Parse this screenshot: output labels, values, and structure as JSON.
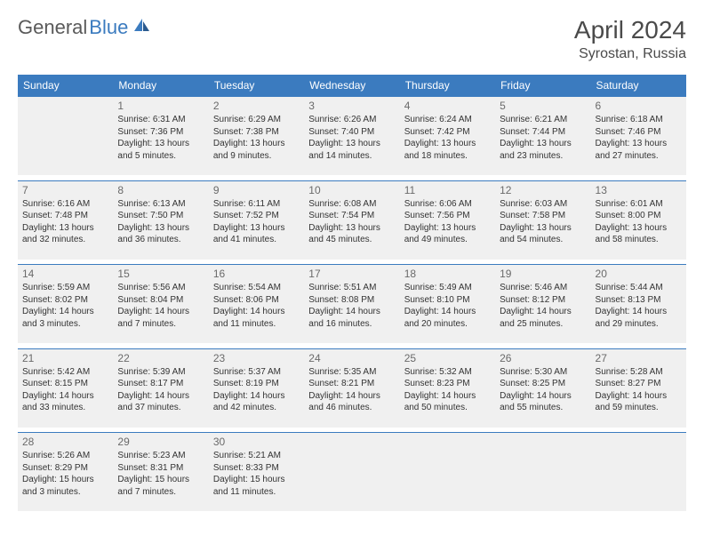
{
  "brand": {
    "part1": "General",
    "part2": "Blue"
  },
  "title": "April 2024",
  "location": "Syrostan, Russia",
  "day_headers": [
    "Sunday",
    "Monday",
    "Tuesday",
    "Wednesday",
    "Thursday",
    "Friday",
    "Saturday"
  ],
  "colors": {
    "header_bg": "#3b7bbf",
    "cell_bg": "#f0f0f0",
    "text": "#333333",
    "title_text": "#4a4a4a"
  },
  "weeks": [
    [
      {
        "n": "",
        "sr": "",
        "ss": "",
        "dl": ""
      },
      {
        "n": "1",
        "sr": "Sunrise: 6:31 AM",
        "ss": "Sunset: 7:36 PM",
        "dl": "Daylight: 13 hours and 5 minutes."
      },
      {
        "n": "2",
        "sr": "Sunrise: 6:29 AM",
        "ss": "Sunset: 7:38 PM",
        "dl": "Daylight: 13 hours and 9 minutes."
      },
      {
        "n": "3",
        "sr": "Sunrise: 6:26 AM",
        "ss": "Sunset: 7:40 PM",
        "dl": "Daylight: 13 hours and 14 minutes."
      },
      {
        "n": "4",
        "sr": "Sunrise: 6:24 AM",
        "ss": "Sunset: 7:42 PM",
        "dl": "Daylight: 13 hours and 18 minutes."
      },
      {
        "n": "5",
        "sr": "Sunrise: 6:21 AM",
        "ss": "Sunset: 7:44 PM",
        "dl": "Daylight: 13 hours and 23 minutes."
      },
      {
        "n": "6",
        "sr": "Sunrise: 6:18 AM",
        "ss": "Sunset: 7:46 PM",
        "dl": "Daylight: 13 hours and 27 minutes."
      }
    ],
    [
      {
        "n": "7",
        "sr": "Sunrise: 6:16 AM",
        "ss": "Sunset: 7:48 PM",
        "dl": "Daylight: 13 hours and 32 minutes."
      },
      {
        "n": "8",
        "sr": "Sunrise: 6:13 AM",
        "ss": "Sunset: 7:50 PM",
        "dl": "Daylight: 13 hours and 36 minutes."
      },
      {
        "n": "9",
        "sr": "Sunrise: 6:11 AM",
        "ss": "Sunset: 7:52 PM",
        "dl": "Daylight: 13 hours and 41 minutes."
      },
      {
        "n": "10",
        "sr": "Sunrise: 6:08 AM",
        "ss": "Sunset: 7:54 PM",
        "dl": "Daylight: 13 hours and 45 minutes."
      },
      {
        "n": "11",
        "sr": "Sunrise: 6:06 AM",
        "ss": "Sunset: 7:56 PM",
        "dl": "Daylight: 13 hours and 49 minutes."
      },
      {
        "n": "12",
        "sr": "Sunrise: 6:03 AM",
        "ss": "Sunset: 7:58 PM",
        "dl": "Daylight: 13 hours and 54 minutes."
      },
      {
        "n": "13",
        "sr": "Sunrise: 6:01 AM",
        "ss": "Sunset: 8:00 PM",
        "dl": "Daylight: 13 hours and 58 minutes."
      }
    ],
    [
      {
        "n": "14",
        "sr": "Sunrise: 5:59 AM",
        "ss": "Sunset: 8:02 PM",
        "dl": "Daylight: 14 hours and 3 minutes."
      },
      {
        "n": "15",
        "sr": "Sunrise: 5:56 AM",
        "ss": "Sunset: 8:04 PM",
        "dl": "Daylight: 14 hours and 7 minutes."
      },
      {
        "n": "16",
        "sr": "Sunrise: 5:54 AM",
        "ss": "Sunset: 8:06 PM",
        "dl": "Daylight: 14 hours and 11 minutes."
      },
      {
        "n": "17",
        "sr": "Sunrise: 5:51 AM",
        "ss": "Sunset: 8:08 PM",
        "dl": "Daylight: 14 hours and 16 minutes."
      },
      {
        "n": "18",
        "sr": "Sunrise: 5:49 AM",
        "ss": "Sunset: 8:10 PM",
        "dl": "Daylight: 14 hours and 20 minutes."
      },
      {
        "n": "19",
        "sr": "Sunrise: 5:46 AM",
        "ss": "Sunset: 8:12 PM",
        "dl": "Daylight: 14 hours and 25 minutes."
      },
      {
        "n": "20",
        "sr": "Sunrise: 5:44 AM",
        "ss": "Sunset: 8:13 PM",
        "dl": "Daylight: 14 hours and 29 minutes."
      }
    ],
    [
      {
        "n": "21",
        "sr": "Sunrise: 5:42 AM",
        "ss": "Sunset: 8:15 PM",
        "dl": "Daylight: 14 hours and 33 minutes."
      },
      {
        "n": "22",
        "sr": "Sunrise: 5:39 AM",
        "ss": "Sunset: 8:17 PM",
        "dl": "Daylight: 14 hours and 37 minutes."
      },
      {
        "n": "23",
        "sr": "Sunrise: 5:37 AM",
        "ss": "Sunset: 8:19 PM",
        "dl": "Daylight: 14 hours and 42 minutes."
      },
      {
        "n": "24",
        "sr": "Sunrise: 5:35 AM",
        "ss": "Sunset: 8:21 PM",
        "dl": "Daylight: 14 hours and 46 minutes."
      },
      {
        "n": "25",
        "sr": "Sunrise: 5:32 AM",
        "ss": "Sunset: 8:23 PM",
        "dl": "Daylight: 14 hours and 50 minutes."
      },
      {
        "n": "26",
        "sr": "Sunrise: 5:30 AM",
        "ss": "Sunset: 8:25 PM",
        "dl": "Daylight: 14 hours and 55 minutes."
      },
      {
        "n": "27",
        "sr": "Sunrise: 5:28 AM",
        "ss": "Sunset: 8:27 PM",
        "dl": "Daylight: 14 hours and 59 minutes."
      }
    ],
    [
      {
        "n": "28",
        "sr": "Sunrise: 5:26 AM",
        "ss": "Sunset: 8:29 PM",
        "dl": "Daylight: 15 hours and 3 minutes."
      },
      {
        "n": "29",
        "sr": "Sunrise: 5:23 AM",
        "ss": "Sunset: 8:31 PM",
        "dl": "Daylight: 15 hours and 7 minutes."
      },
      {
        "n": "30",
        "sr": "Sunrise: 5:21 AM",
        "ss": "Sunset: 8:33 PM",
        "dl": "Daylight: 15 hours and 11 minutes."
      },
      {
        "n": "",
        "sr": "",
        "ss": "",
        "dl": ""
      },
      {
        "n": "",
        "sr": "",
        "ss": "",
        "dl": ""
      },
      {
        "n": "",
        "sr": "",
        "ss": "",
        "dl": ""
      },
      {
        "n": "",
        "sr": "",
        "ss": "",
        "dl": ""
      }
    ]
  ]
}
